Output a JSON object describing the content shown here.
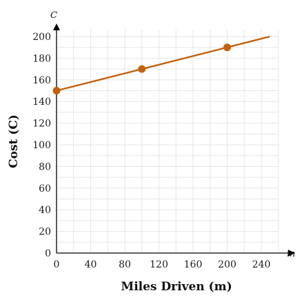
{
  "chart_data": {
    "type": "line",
    "xlabel": "Miles Driven (m)",
    "ylabel": "Cost (C)",
    "x_axis_variable": "m",
    "y_axis_variable": "C",
    "xlim": [
      0,
      260
    ],
    "ylim": [
      0,
      200
    ],
    "x_ticks": [
      0,
      40,
      80,
      120,
      160,
      200,
      240
    ],
    "y_ticks": [
      0,
      20,
      40,
      60,
      80,
      100,
      120,
      140,
      160,
      180,
      200
    ],
    "grid": true,
    "series": [
      {
        "color": "#c2620e",
        "line": {
          "x": [
            0,
            250
          ],
          "y": [
            150,
            200
          ]
        },
        "points": [
          {
            "x": 0,
            "y": 150
          },
          {
            "x": 100,
            "y": 170
          },
          {
            "x": 200,
            "y": 190
          }
        ]
      }
    ]
  }
}
